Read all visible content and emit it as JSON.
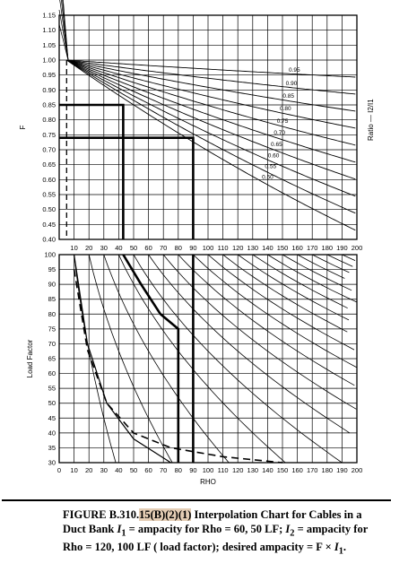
{
  "chart_data": [
    {
      "type": "line",
      "ylabel": "F",
      "right_label": "Ratio — I2/I1",
      "xlim": [
        0,
        200
      ],
      "ylim": [
        0.4,
        1.15
      ],
      "x_ticks": [
        "10",
        "20",
        "30",
        "40",
        "50",
        "60",
        "70",
        "80",
        "90",
        "100",
        "110",
        "120",
        "130",
        "140",
        "150",
        "160",
        "170",
        "180",
        "190",
        "200"
      ],
      "y_ticks": [
        "0.40",
        "0.45",
        "0.50",
        "0.55",
        "0.60",
        "0.65",
        "0.70",
        "0.75",
        "0.80",
        "0.85",
        "0.90",
        "0.95",
        "1.00",
        "1.05",
        "1.10",
        "1.15"
      ],
      "grid": true,
      "curve_labels": [
        "0.95",
        "0.90",
        "0.85",
        "0.80",
        "0.75",
        "0.70",
        "0.65",
        "0.60",
        "0.55",
        "0.50"
      ],
      "series": [
        {
          "name": "0.95",
          "x": [
            5,
            60,
            100,
            150,
            200
          ],
          "y": [
            1.0,
            0.987,
            0.97,
            0.95,
            0.93
          ]
        },
        {
          "name": "0.90",
          "x": [
            5,
            60,
            100,
            150,
            200
          ],
          "y": [
            1.0,
            0.974,
            0.94,
            0.9,
            0.86
          ]
        },
        {
          "name": "0.85",
          "x": [
            5,
            60,
            100,
            150,
            200
          ],
          "y": [
            1.0,
            0.961,
            0.91,
            0.85,
            0.79
          ]
        },
        {
          "name": "0.80",
          "x": [
            5,
            60,
            100,
            150,
            200
          ],
          "y": [
            1.0,
            0.948,
            0.88,
            0.8,
            0.72
          ]
        },
        {
          "name": "0.75",
          "x": [
            5,
            60,
            100,
            150,
            200
          ],
          "y": [
            1.0,
            0.935,
            0.85,
            0.75,
            0.65
          ]
        },
        {
          "name": "0.70",
          "x": [
            5,
            60,
            100,
            150,
            200
          ],
          "y": [
            1.0,
            0.922,
            0.82,
            0.7,
            0.58
          ]
        },
        {
          "name": "0.65",
          "x": [
            5,
            60,
            100,
            150,
            200
          ],
          "y": [
            1.0,
            0.909,
            0.79,
            0.65,
            0.51
          ]
        },
        {
          "name": "0.60",
          "x": [
            5,
            60,
            100,
            150,
            200
          ],
          "y": [
            1.0,
            0.896,
            0.76,
            0.6,
            0.44
          ]
        },
        {
          "name": "0.55",
          "x": [
            5,
            60,
            100,
            150,
            190
          ],
          "y": [
            1.0,
            0.883,
            0.73,
            0.55,
            0.4
          ]
        },
        {
          "name": "0.50",
          "x": [
            5,
            60,
            100,
            150,
            175
          ],
          "y": [
            1.0,
            0.87,
            0.7,
            0.5,
            0.4
          ]
        }
      ],
      "annotations": [
        {
          "x": [
            0,
            43,
            43
          ],
          "y": [
            0.85,
            0.85,
            0.4
          ]
        },
        {
          "x": [
            0,
            90,
            90
          ],
          "y": [
            0.74,
            0.74,
            0.4
          ]
        }
      ]
    },
    {
      "type": "line",
      "xlabel": "RHO",
      "ylabel": "Load Factor",
      "xlim": [
        0,
        200
      ],
      "ylim": [
        30,
        100
      ],
      "x_ticks": [
        "0",
        "10",
        "20",
        "30",
        "40",
        "50",
        "60",
        "70",
        "80",
        "90",
        "100",
        "110",
        "120",
        "130",
        "140",
        "150",
        "160",
        "170",
        "180",
        "190",
        "200"
      ],
      "y_ticks": [
        "30",
        "35",
        "40",
        "45",
        "50",
        "55",
        "60",
        "65",
        "70",
        "75",
        "80",
        "85",
        "90",
        "95",
        "100"
      ],
      "grid": true,
      "family_x_at_lf100": [
        10,
        20,
        30,
        40,
        50,
        60,
        70,
        80,
        90,
        100,
        110,
        120,
        130,
        140,
        150,
        160,
        170,
        180,
        190,
        200
      ],
      "series": [
        {
          "name": "",
          "style": "solid",
          "x": [
            10,
            19,
            32,
            50,
            75
          ],
          "y": [
            100,
            70,
            50,
            38,
            30
          ]
        },
        {
          "name": "",
          "style": "dashed",
          "x": [
            10,
            19,
            32,
            50,
            75,
            110,
            150
          ],
          "y": [
            95,
            68,
            50,
            40,
            35,
            32,
            30
          ]
        },
        {
          "name": "",
          "style": "bold",
          "x": [
            43,
            55,
            68,
            80,
            80
          ],
          "y": [
            100,
            90,
            80,
            75,
            30
          ]
        },
        {
          "name": "",
          "style": "bold",
          "x": [
            90,
            90
          ],
          "y": [
            100,
            30
          ]
        }
      ]
    }
  ],
  "caption": {
    "lead": "FIGURE B.310.",
    "highlight": "15(B)(2)(1)",
    "rest1": "  Interpolation Chart for Cables in a Duct Bank ",
    "i1": "I",
    "i1sub": "1",
    "rest2": " = ampacity for Rho = 60, 50 LF; ",
    "i2": "I",
    "i2sub": "2",
    "rest3": " = ampacity for Rho = 120, 100 LF ( load factor); desired ampacity = F × ",
    "i3": "I",
    "i3sub": "1",
    "end": "."
  },
  "colors": {
    "ink": "#000000",
    "paper": "#ffffff",
    "highlight": "#e4cdb4"
  }
}
